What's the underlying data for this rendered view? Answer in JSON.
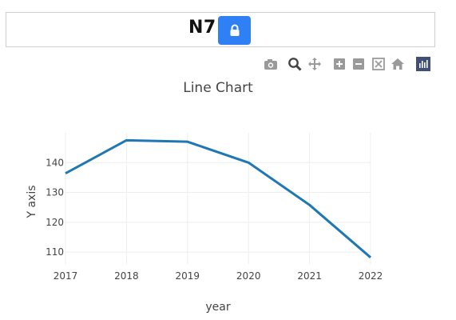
{
  "header": {
    "title": "N7"
  },
  "toolbar": {
    "icons": [
      "camera-icon",
      "zoom-icon",
      "pan-icon",
      "zoom-in-icon",
      "zoom-out-icon",
      "autoscale-icon",
      "home-icon",
      "plotly-logo-icon"
    ]
  },
  "colors": {
    "accent": "#2f80f5",
    "line": "#1f77b4",
    "logo": "#3f4f75"
  },
  "chart_data": {
    "type": "line",
    "title": "Line Chart",
    "xlabel": "year",
    "ylabel": "Y axis",
    "x": [
      "2017",
      "2018",
      "2019",
      "2020",
      "2021",
      "2022"
    ],
    "series": [
      {
        "values": [
          136.4,
          147.5,
          147.0,
          140.0,
          125.8,
          108.2
        ]
      }
    ],
    "ylim": [
      106,
      150
    ],
    "yticks": [
      110,
      120,
      130,
      140
    ],
    "grid": true
  }
}
